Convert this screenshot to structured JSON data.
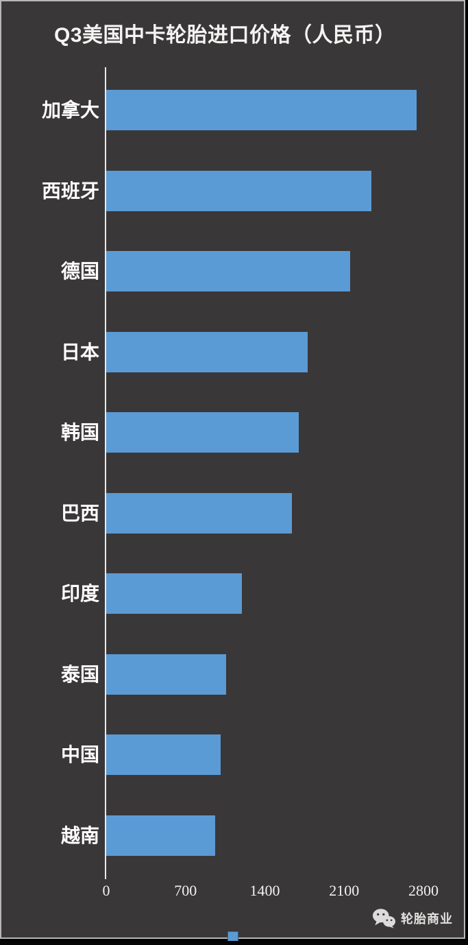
{
  "title": "Q3美国中卡轮胎进口价格（人民币）",
  "chart_data": {
    "type": "bar",
    "orientation": "horizontal",
    "title": "Q3美国中卡轮胎进口价格（人民币）",
    "categories": [
      "加拿大",
      "西班牙",
      "德国",
      "日本",
      "韩国",
      "巴西",
      "印度",
      "泰国",
      "中国",
      "越南"
    ],
    "values": [
      2740,
      2340,
      2150,
      1780,
      1700,
      1640,
      1200,
      1060,
      1010,
      960
    ],
    "xlabel": "",
    "ylabel": "",
    "xlim": [
      0,
      2800
    ],
    "x_ticks": [
      0,
      700,
      1400,
      2100,
      2800
    ],
    "grid": false,
    "bar_color": "#5b9bd5",
    "background_color": "#3a3738",
    "text_color": "#ffffff",
    "legend": "single unlabeled color swatch at bottom center"
  },
  "branding": {
    "name": "轮胎商业",
    "icon": "wechat-icon"
  }
}
